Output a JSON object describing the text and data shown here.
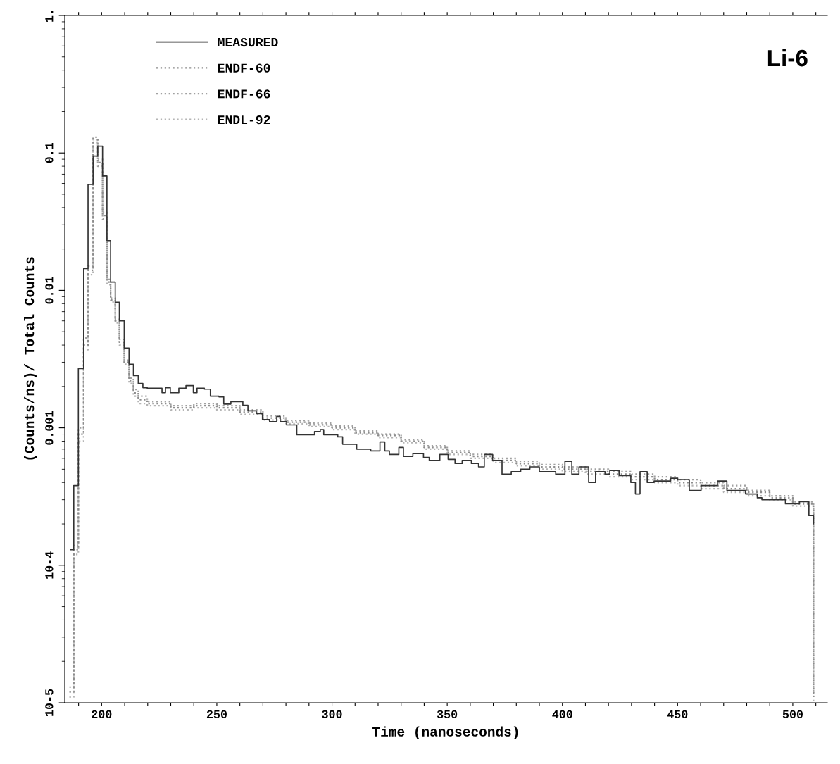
{
  "chart_data": {
    "type": "step",
    "xlabel": "Time (nanoseconds)",
    "ylabel": "(Counts/ns)/ Total Counts",
    "annotations": [
      "Li-6"
    ],
    "log": "y",
    "grid": false,
    "legend": "top left",
    "xlim": [
      184,
      515
    ],
    "xticks": [
      {
        "value": 190,
        "label": null
      },
      200,
      {
        "value": 210,
        "label": null
      },
      {
        "value": 220,
        "label": null
      },
      {
        "value": 230,
        "label": null
      },
      {
        "value": 240,
        "label": null
      },
      250,
      {
        "value": 260,
        "label": null
      },
      {
        "value": 270,
        "label": null
      },
      {
        "value": 280,
        "label": null
      },
      {
        "value": 290,
        "label": null
      },
      300,
      {
        "value": 310,
        "label": null
      },
      {
        "value": 320,
        "label": null
      },
      {
        "value": 330,
        "label": null
      },
      {
        "value": 340,
        "label": null
      },
      350,
      {
        "value": 360,
        "label": null
      },
      {
        "value": 370,
        "label": null
      },
      {
        "value": 380,
        "label": null
      },
      {
        "value": 390,
        "label": null
      },
      400,
      {
        "value": 410,
        "label": null
      },
      {
        "value": 420,
        "label": null
      },
      {
        "value": 430,
        "label": null
      },
      {
        "value": 440,
        "label": null
      },
      450,
      {
        "value": 460,
        "label": null
      },
      {
        "value": 470,
        "label": null
      },
      {
        "value": 480,
        "label": null
      },
      {
        "value": 490,
        "label": null
      },
      500,
      {
        "value": 510,
        "label": null
      }
    ],
    "ylim": [
      1e-05,
      1
    ],
    "yticks": [
      {
        "value": 1e-05,
        "label": "10-5"
      },
      {
        "value": 0.0001,
        "label": "10-4"
      },
      0.001,
      0.01,
      0.1,
      {
        "value": 1,
        "label": "1."
      }
    ],
    "series": [
      {
        "name": "MEASURED",
        "color": "#333333",
        "line_style": "solid",
        "x": [
          186.6,
          187.9,
          189.9,
          192.2,
          194.1,
          196.3,
          198.3,
          200.4,
          202.3,
          203.9,
          205.9,
          207.7,
          209.8,
          211.9,
          213.8,
          215.9,
          217.9,
          219.8,
          226.2,
          227.7,
          229.8,
          233.5,
          236.6,
          239.8,
          241.4,
          244.6,
          247.2,
          250.9,
          253.0,
          256.1,
          261.3,
          263.5,
          267.1,
          269.8,
          272.9,
          276.0,
          277.5,
          280.3,
          284.7,
          292.4,
          294.9,
          296.4,
          302.5,
          304.6,
          310.7,
          316.8,
          320.8,
          322.9,
          324.9,
          329.0,
          331.0,
          335.1,
          339.7,
          342.2,
          346.8,
          350.4,
          353.4,
          356.5,
          360.5,
          363.6,
          366.1,
          369.7,
          373.8,
          377.8,
          381.9,
          385.9,
          390.0,
          397.1,
          401.1,
          404.1,
          407.2,
          411.4,
          414.4,
          418.5,
          420.6,
          424.6,
          429.7,
          431.7,
          433.7,
          436.8,
          439.8,
          447.0,
          450.0,
          455.1,
          460.2,
          467.3,
          471.4,
          479.5,
          484.6,
          486.6,
          492.7,
          496.8,
          502.9,
          507.0,
          509.0
        ],
        "values": [
          0.00013,
          0.00038,
          0.0027,
          0.0144,
          0.059,
          0.095,
          0.112,
          0.068,
          0.023,
          0.0115,
          0.0082,
          0.006,
          0.0038,
          0.0029,
          0.0024,
          0.0021,
          0.00196,
          0.00194,
          0.0018,
          0.00196,
          0.0018,
          0.00194,
          0.00203,
          0.0018,
          0.00194,
          0.00191,
          0.0017,
          0.00168,
          0.00149,
          0.00155,
          0.00146,
          0.00133,
          0.00127,
          0.00115,
          0.00111,
          0.00121,
          0.00111,
          0.00105,
          0.00089,
          0.00094,
          0.00097,
          0.00089,
          0.00086,
          0.00076,
          0.0007,
          0.00068,
          0.00079,
          0.00068,
          0.00064,
          0.00072,
          0.00062,
          0.00065,
          0.00061,
          0.00058,
          0.00064,
          0.00059,
          0.00055,
          0.00058,
          0.00055,
          0.00052,
          0.00064,
          0.00058,
          0.00046,
          0.00048,
          0.0005,
          0.00052,
          0.00048,
          0.00046,
          0.00057,
          0.00046,
          0.00052,
          0.0004,
          0.00048,
          0.00046,
          0.00049,
          0.00045,
          0.0004,
          0.00033,
          0.00048,
          0.0004,
          0.00041,
          0.00043,
          0.00042,
          0.00035,
          0.00038,
          0.00041,
          0.00035,
          0.00033,
          0.00031,
          0.0003,
          0.0003,
          0.00028,
          0.00029,
          0.00023,
          0.0002
        ]
      },
      {
        "name": "ENDF-60",
        "color": "#8c8c8c",
        "line_style": "dotted",
        "x": [
          186.0,
          187.9,
          189.9,
          192.2,
          194.1,
          196.3,
          198.3,
          200.4,
          202.3,
          203.9,
          205.9,
          207.7,
          209.8,
          211.9,
          213.8,
          215.9,
          219.8,
          230,
          240,
          250,
          260,
          270,
          280,
          290,
          300,
          310,
          320,
          330,
          340,
          350,
          360,
          370,
          380,
          390,
          400,
          410,
          420,
          430,
          440,
          450,
          460,
          470,
          480,
          490,
          500,
          509.0
        ],
        "values": [
          1.2e-05,
          0.00013,
          0.0009,
          0.004,
          0.014,
          0.13,
          0.085,
          0.035,
          0.0115,
          0.0085,
          0.006,
          0.0042,
          0.003,
          0.0022,
          0.0018,
          0.0016,
          0.0015,
          0.0014,
          0.00145,
          0.0014,
          0.0013,
          0.00118,
          0.0011,
          0.00105,
          0.001,
          0.00092,
          0.00088,
          0.0008,
          0.00072,
          0.00066,
          0.00062,
          0.00058,
          0.00055,
          0.00052,
          0.0005,
          0.00048,
          0.00046,
          0.00044,
          0.00042,
          0.0004,
          0.00038,
          0.00036,
          0.00034,
          0.00031,
          0.00028,
          1.1e-05
        ]
      },
      {
        "name": "ENDF-66",
        "color": "#a0a0a0",
        "line_style": "dotted",
        "x": [
          186.0,
          187.9,
          189.9,
          192.2,
          194.1,
          196.3,
          198.3,
          200.4,
          202.3,
          203.9,
          205.9,
          207.7,
          209.8,
          211.9,
          213.8,
          215.9,
          219.8,
          230,
          240,
          250,
          260,
          270,
          280,
          290,
          300,
          310,
          320,
          330,
          340,
          350,
          360,
          370,
          380,
          390,
          400,
          410,
          420,
          430,
          440,
          450,
          460,
          470,
          480,
          490,
          500,
          509.0
        ],
        "values": [
          1.3e-05,
          0.00014,
          0.001,
          0.0045,
          0.015,
          0.12,
          0.08,
          0.033,
          0.012,
          0.0088,
          0.0062,
          0.0044,
          0.0031,
          0.0023,
          0.0019,
          0.0017,
          0.00155,
          0.00145,
          0.0015,
          0.00145,
          0.00135,
          0.00122,
          0.00113,
          0.00108,
          0.00103,
          0.00095,
          0.0009,
          0.00082,
          0.00074,
          0.00068,
          0.00064,
          0.0006,
          0.00057,
          0.00054,
          0.00052,
          0.0005,
          0.00048,
          0.00046,
          0.00044,
          0.00042,
          0.0004,
          0.00038,
          0.00035,
          0.00032,
          0.00029,
          1.2e-05
        ]
      },
      {
        "name": "ENDL-92",
        "color": "#b4b4b4",
        "line_style": "dotted",
        "x": [
          186.0,
          187.9,
          189.9,
          192.2,
          194.1,
          196.3,
          198.3,
          200.4,
          202.3,
          203.9,
          205.9,
          207.7,
          209.8,
          211.9,
          213.8,
          215.9,
          219.8,
          230,
          240,
          250,
          260,
          270,
          280,
          290,
          300,
          310,
          320,
          330,
          340,
          350,
          360,
          370,
          380,
          390,
          400,
          410,
          420,
          430,
          440,
          450,
          460,
          470,
          480,
          490,
          500,
          509.0
        ],
        "values": [
          1.1e-05,
          0.00012,
          0.0008,
          0.0037,
          0.013,
          0.125,
          0.09,
          0.037,
          0.011,
          0.0082,
          0.0058,
          0.004,
          0.0029,
          0.0021,
          0.0017,
          0.0015,
          0.00145,
          0.00135,
          0.0014,
          0.00135,
          0.00125,
          0.00114,
          0.00107,
          0.00102,
          0.00097,
          0.0009,
          0.00085,
          0.00078,
          0.0007,
          0.00064,
          0.0006,
          0.00056,
          0.00053,
          0.0005,
          0.00048,
          0.00046,
          0.00044,
          0.00042,
          0.0004,
          0.00038,
          0.00036,
          0.00034,
          0.00032,
          0.0003,
          0.00027,
          1e-05
        ]
      }
    ]
  }
}
